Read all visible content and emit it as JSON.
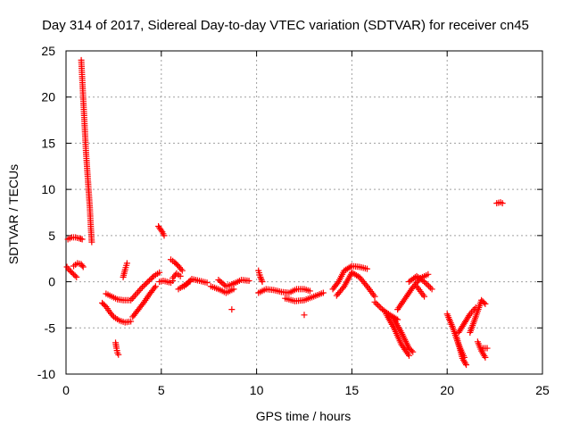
{
  "colors": {
    "series": "#ff0000",
    "grid": "#a0a0a0",
    "axis": "#000000",
    "background": "#ffffff"
  },
  "chart_data": {
    "type": "scatter",
    "title": "Day 314 of 2017, Sidereal Day-to-day VTEC variation (SDTVAR) for receiver cn45",
    "xlabel": "GPS time / hours",
    "ylabel": "SDTVAR / TECUs",
    "xlim": [
      0,
      25
    ],
    "ylim": [
      -10,
      25
    ],
    "xticks": [
      0,
      5,
      10,
      15,
      20,
      25
    ],
    "yticks": [
      -10,
      -5,
      0,
      5,
      10,
      15,
      20,
      25
    ],
    "grid": true,
    "marker": "plus",
    "series": [
      {
        "name": "SDTVAR",
        "segments": [
          {
            "x": [
              0.05,
              0.2,
              0.4,
              0.55
            ],
            "y": [
              1.6,
              1.2,
              0.8,
              0.5
            ]
          },
          {
            "x": [
              0.1,
              0.3,
              0.5,
              0.7,
              0.85
            ],
            "y": [
              4.6,
              4.8,
              4.8,
              4.7,
              4.6
            ]
          },
          {
            "x": [
              0.4,
              0.6,
              0.8,
              0.9
            ],
            "y": [
              1.7,
              2.0,
              1.9,
              1.6
            ]
          },
          {
            "x": [
              0.8,
              0.85,
              0.9,
              0.95,
              1.0,
              1.05,
              1.1,
              1.15,
              1.2,
              1.25,
              1.3,
              1.35
            ],
            "y": [
              24,
              22,
              20,
              18,
              16,
              14,
              12.5,
              11,
              9.5,
              8,
              6,
              4.3
            ]
          },
          {
            "x": [
              1.9,
              2.1,
              2.3,
              2.5,
              2.8,
              3.1,
              3.4
            ],
            "y": [
              -2.3,
              -2.7,
              -3.3,
              -3.8,
              -4.2,
              -4.4,
              -4.3
            ]
          },
          {
            "x": [
              2.1,
              2.4,
              2.7,
              3.0,
              3.3
            ],
            "y": [
              -1.3,
              -1.6,
              -1.9,
              -2.0,
              -2.0
            ]
          },
          {
            "x": [
              2.6,
              2.65,
              2.7,
              2.75
            ],
            "y": [
              -6.6,
              -7.2,
              -7.7,
              -7.9
            ]
          },
          {
            "x": [
              3.0,
              3.1,
              3.2
            ],
            "y": [
              0.5,
              1.3,
              2.0
            ]
          },
          {
            "x": [
              3.4,
              3.7,
              4.0,
              4.3,
              4.6,
              4.9
            ],
            "y": [
              -2.0,
              -1.3,
              -0.6,
              0.0,
              0.6,
              1.0
            ]
          },
          {
            "x": [
              3.5,
              3.8,
              4.1,
              4.4,
              4.7
            ],
            "y": [
              -3.8,
              -3.0,
              -2.2,
              -1.3,
              -0.5
            ]
          },
          {
            "x": [
              4.85,
              4.95,
              5.05,
              5.15
            ],
            "y": [
              6.0,
              5.7,
              5.4,
              5.0
            ]
          },
          {
            "x": [
              4.9,
              5.1,
              5.3,
              5.5,
              5.6
            ],
            "y": [
              0.0,
              0.1,
              0.0,
              -0.1,
              0.1
            ]
          },
          {
            "x": [
              5.5,
              5.7,
              5.9,
              6.1
            ],
            "y": [
              2.4,
              2.1,
              1.7,
              1.2
            ]
          },
          {
            "x": [
              5.6,
              5.8,
              6.0
            ],
            "y": [
              0.4,
              0.9,
              0.6
            ]
          },
          {
            "x": [
              6.2,
              6.6,
              7.0,
              7.4
            ],
            "y": [
              -0.5,
              0.3,
              0.1,
              -0.1
            ]
          },
          {
            "x": [
              5.9,
              6.2,
              6.5
            ],
            "y": [
              -0.8,
              -0.4,
              0.0
            ]
          },
          {
            "x": [
              7.6,
              8.0,
              8.4,
              8.8
            ],
            "y": [
              -0.5,
              -0.8,
              -1.2,
              -0.8
            ]
          },
          {
            "x": [
              8.0,
              8.4,
              8.8
            ],
            "y": [
              0.2,
              -0.5,
              -0.2
            ]
          },
          {
            "x": [
              8.8,
              9.2,
              9.6
            ],
            "y": [
              -0.2,
              0.2,
              0.1
            ]
          },
          {
            "x": [
              8.7
            ],
            "y": [
              -3.0
            ]
          },
          {
            "x": [
              10.1,
              10.2,
              10.3
            ],
            "y": [
              1.2,
              0.5,
              0.0
            ]
          },
          {
            "x": [
              10.1,
              10.5,
              10.9,
              11.3,
              11.7,
              12.1,
              12.5,
              12.8
            ],
            "y": [
              -1.2,
              -0.8,
              -0.9,
              -1.1,
              -1.2,
              -0.8,
              -0.8,
              -1.0
            ]
          },
          {
            "x": [
              11.5,
              12.0,
              12.5,
              13.0,
              13.5
            ],
            "y": [
              -1.8,
              -2.1,
              -2.0,
              -1.6,
              -1.2
            ]
          },
          {
            "x": [
              12.5
            ],
            "y": [
              -3.6
            ]
          },
          {
            "x": [
              14.0,
              14.3,
              14.6,
              15.0,
              15.4,
              15.8
            ],
            "y": [
              -0.8,
              0.0,
              1.2,
              1.7,
              1.6,
              1.4
            ]
          },
          {
            "x": [
              14.2,
              14.6,
              15.0,
              15.4,
              15.8,
              16.2
            ],
            "y": [
              -1.5,
              -0.5,
              1.0,
              0.5,
              -0.5,
              -1.6
            ]
          },
          {
            "x": [
              16.2,
              16.6,
              17.0,
              17.4
            ],
            "y": [
              -2.2,
              -3.0,
              -3.6,
              -4.1
            ]
          },
          {
            "x": [
              16.8,
              17.2,
              17.6,
              18.0
            ],
            "y": [
              -3.5,
              -5.0,
              -6.8,
              -8.0
            ]
          },
          {
            "x": [
              17.2,
              17.6,
              18.0,
              18.2
            ],
            "y": [
              -4.0,
              -5.5,
              -7.2,
              -7.6
            ]
          },
          {
            "x": [
              17.4,
              17.8,
              18.2,
              18.6,
              19.0
            ],
            "y": [
              -3.0,
              -1.8,
              -0.6,
              0.4,
              0.8
            ]
          },
          {
            "x": [
              18.0,
              18.4,
              18.8,
              19.2
            ],
            "y": [
              0.0,
              0.6,
              0.0,
              -0.8
            ]
          },
          {
            "x": [
              18.4,
              18.8
            ],
            "y": [
              -0.5,
              -1.6
            ]
          },
          {
            "x": [
              20.0,
              20.3,
              20.6,
              20.9
            ],
            "y": [
              -3.5,
              -5.0,
              -6.8,
              -8.2
            ]
          },
          {
            "x": [
              20.5,
              20.8,
              21.0
            ],
            "y": [
              -6.0,
              -8.3,
              -9.0
            ]
          },
          {
            "x": [
              20.6,
              20.9,
              21.2,
              21.5
            ],
            "y": [
              -5.5,
              -4.5,
              -3.5,
              -2.8
            ]
          },
          {
            "x": [
              21.2,
              21.5,
              21.8,
              22.0
            ],
            "y": [
              -5.5,
              -3.8,
              -2.0,
              -2.4
            ]
          },
          {
            "x": [
              21.6,
              21.8,
              22.0
            ],
            "y": [
              -6.5,
              -7.5,
              -8.2
            ]
          },
          {
            "x": [
              21.9,
              22.1
            ],
            "y": [
              -7.2,
              -7.2
            ]
          },
          {
            "x": [
              22.6,
              22.8,
              22.9
            ],
            "y": [
              8.5,
              8.6,
              8.5
            ]
          }
        ]
      }
    ]
  }
}
